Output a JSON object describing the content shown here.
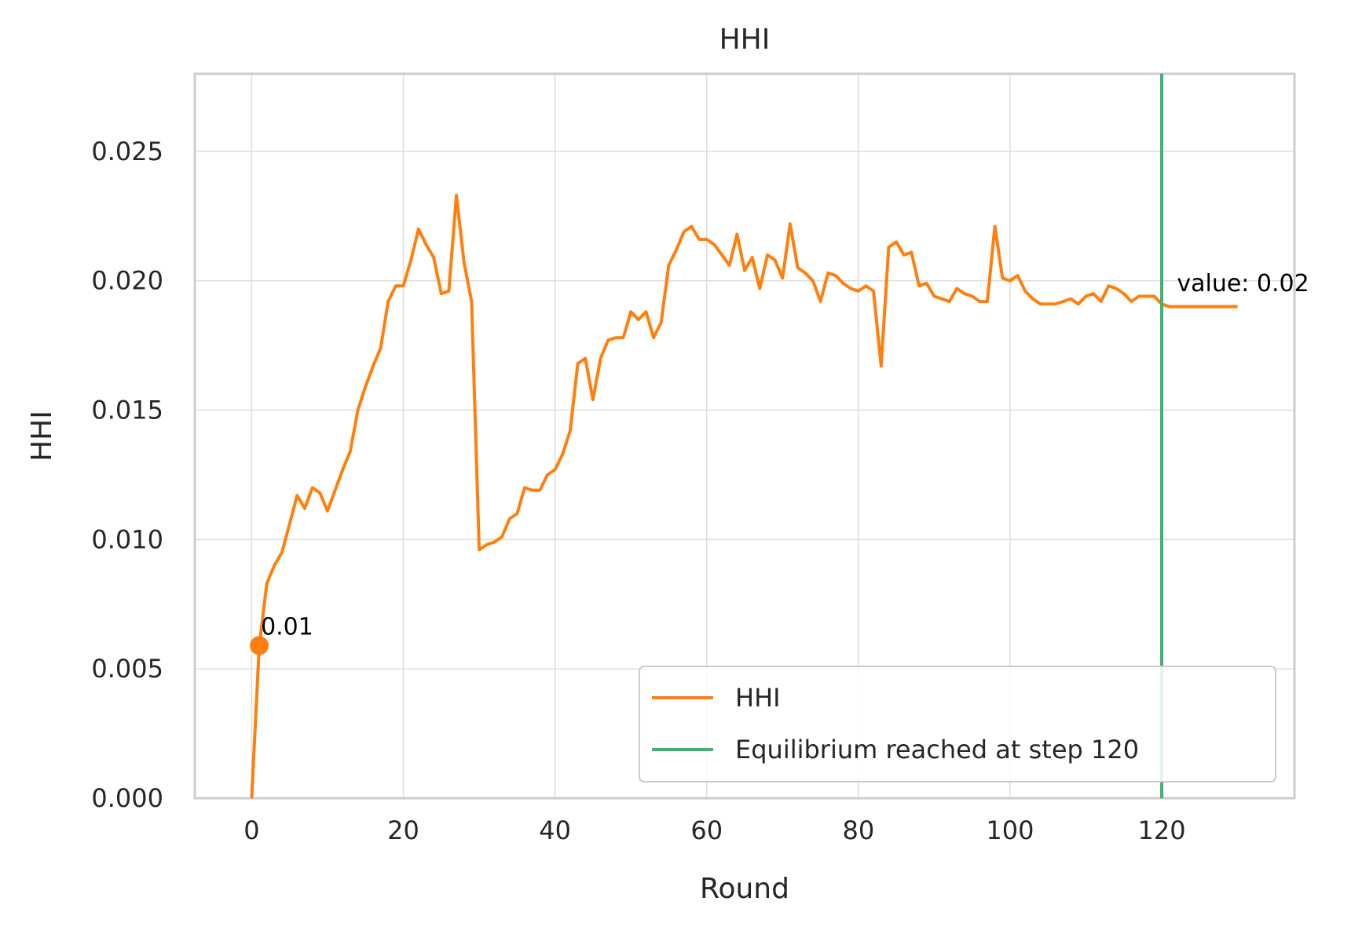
{
  "chart_data": {
    "type": "line",
    "title": "HHI",
    "xlabel": "Round",
    "ylabel": "HHI",
    "xlim": [
      -7.5,
      137.5
    ],
    "ylim": [
      0,
      0.028
    ],
    "xticks": [
      0,
      20,
      40,
      60,
      80,
      100,
      120
    ],
    "xtick_labels": [
      "0",
      "20",
      "40",
      "60",
      "80",
      "100",
      "120"
    ],
    "yticks": [
      0,
      0.005,
      0.01,
      0.015,
      0.02,
      0.025
    ],
    "ytick_labels": [
      "0.000",
      "0.005",
      "0.010",
      "0.015",
      "0.020",
      "0.025"
    ],
    "grid": true,
    "legend_position": "lower-right",
    "series": [
      {
        "name": "HHI",
        "color": "#ff7f0e",
        "x": [
          0,
          1,
          2,
          3,
          4,
          5,
          6,
          7,
          8,
          9,
          10,
          11,
          12,
          13,
          14,
          15,
          16,
          17,
          18,
          19,
          20,
          21,
          22,
          23,
          24,
          25,
          26,
          27,
          28,
          29,
          30,
          31,
          32,
          33,
          34,
          35,
          36,
          37,
          38,
          39,
          40,
          41,
          42,
          43,
          44,
          45,
          46,
          47,
          48,
          49,
          50,
          51,
          52,
          53,
          54,
          55,
          56,
          57,
          58,
          59,
          60,
          61,
          62,
          63,
          64,
          65,
          66,
          67,
          68,
          69,
          70,
          71,
          72,
          73,
          74,
          75,
          76,
          77,
          78,
          79,
          80,
          81,
          82,
          83,
          84,
          85,
          86,
          87,
          88,
          89,
          90,
          91,
          92,
          93,
          94,
          95,
          96,
          97,
          98,
          99,
          100,
          101,
          102,
          103,
          104,
          105,
          106,
          107,
          108,
          109,
          110,
          111,
          112,
          113,
          114,
          115,
          116,
          117,
          118,
          119,
          120,
          121,
          122,
          123,
          124,
          125,
          126,
          127,
          128,
          129,
          130
        ],
        "values": [
          0.0,
          0.0059,
          0.0083,
          0.009,
          0.0095,
          0.0106,
          0.0117,
          0.0112,
          0.012,
          0.0118,
          0.0111,
          0.0119,
          0.0127,
          0.0134,
          0.015,
          0.0159,
          0.0167,
          0.0174,
          0.0192,
          0.0198,
          0.0198,
          0.0208,
          0.022,
          0.0214,
          0.0209,
          0.0195,
          0.0196,
          0.0233,
          0.0207,
          0.0192,
          0.0096,
          0.0098,
          0.0099,
          0.0101,
          0.0108,
          0.011,
          0.012,
          0.0119,
          0.0119,
          0.0125,
          0.0127,
          0.0133,
          0.0142,
          0.0168,
          0.017,
          0.0154,
          0.017,
          0.0177,
          0.0178,
          0.0178,
          0.0188,
          0.0185,
          0.0188,
          0.0178,
          0.0184,
          0.0206,
          0.0212,
          0.0219,
          0.0221,
          0.0216,
          0.0216,
          0.0214,
          0.021,
          0.0206,
          0.0218,
          0.0204,
          0.0209,
          0.0197,
          0.021,
          0.0208,
          0.0201,
          0.0222,
          0.0205,
          0.0203,
          0.02,
          0.0192,
          0.0203,
          0.0202,
          0.0199,
          0.0197,
          0.0196,
          0.0198,
          0.0196,
          0.0167,
          0.0213,
          0.0215,
          0.021,
          0.0211,
          0.0198,
          0.0199,
          0.0194,
          0.0193,
          0.0192,
          0.0197,
          0.0195,
          0.0194,
          0.0192,
          0.0192,
          0.0221,
          0.0201,
          0.02,
          0.0202,
          0.0196,
          0.0193,
          0.0191,
          0.0191,
          0.0191,
          0.0192,
          0.0193,
          0.0191,
          0.0194,
          0.0195,
          0.0192,
          0.0198,
          0.0197,
          0.0195,
          0.0192,
          0.0194,
          0.0194,
          0.0194,
          0.0191,
          0.019,
          0.019,
          0.019,
          0.019,
          0.019,
          0.019,
          0.019,
          0.019,
          0.019,
          0.019
        ]
      },
      {
        "name": "Equilibrium reached at step 120",
        "type": "vline",
        "color": "#3cb371",
        "x": 120
      }
    ],
    "markers": [
      {
        "x": 1,
        "y": 0.0059,
        "label": "0.01",
        "color": "#ff7f0e"
      }
    ],
    "annotations": [
      {
        "x": 122,
        "y": 0.0199,
        "text": "value: 0.02"
      }
    ],
    "legend": [
      "HHI",
      "Equilibrium reached at step 120"
    ]
  }
}
